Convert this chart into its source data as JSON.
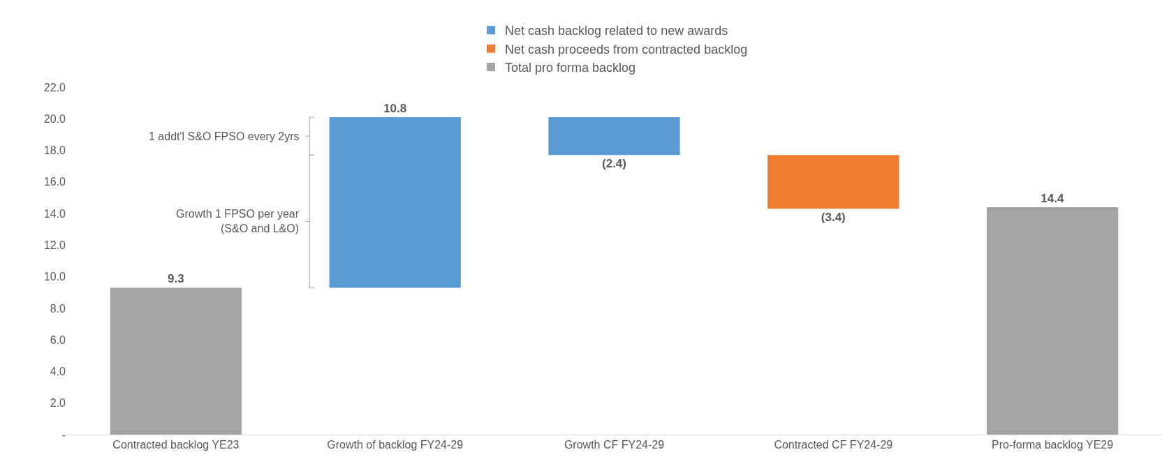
{
  "chart_data": {
    "type": "bar",
    "categories": [
      "Contracted backlog YE23",
      "Growth of backlog FY24-29",
      "Growth CF FY24-29",
      "Contracted CF FY24-29",
      "Pro-forma backlog YE29"
    ],
    "series": [
      {
        "name": "Net cash backlog related to new awards",
        "color": "#5b9bd5",
        "values": [
          null,
          10.8,
          -2.4,
          null,
          null
        ],
        "base": [
          null,
          9.3,
          20.1,
          null,
          null
        ],
        "value_labels": [
          null,
          "10.8",
          "(2.4)",
          null,
          null
        ]
      },
      {
        "name": "Net cash proceeds from contracted backlog",
        "color": "#ed7d31",
        "values": [
          null,
          null,
          null,
          -3.4,
          null
        ],
        "base": [
          null,
          null,
          null,
          17.7,
          null
        ],
        "value_labels": [
          null,
          null,
          null,
          "(3.4)",
          null
        ]
      },
      {
        "name": "Total pro forma backlog",
        "color": "#a5a5a5",
        "values": [
          9.3,
          null,
          null,
          null,
          14.4
        ],
        "value_labels": [
          "9.3",
          null,
          null,
          null,
          "14.4"
        ]
      }
    ],
    "ylim": [
      0,
      22
    ],
    "yticks": [
      {
        "value": 0,
        "label": "-"
      },
      {
        "value": 2,
        "label": "2.0"
      },
      {
        "value": 4,
        "label": "4.0"
      },
      {
        "value": 6,
        "label": "6.0"
      },
      {
        "value": 8,
        "label": "8.0"
      },
      {
        "value": 10,
        "label": "10.0"
      },
      {
        "value": 12,
        "label": "12.0"
      },
      {
        "value": 14,
        "label": "14.0"
      },
      {
        "value": 16,
        "label": "16.0"
      },
      {
        "value": 18,
        "label": "18.0"
      },
      {
        "value": 20,
        "label": "20.0"
      },
      {
        "value": 22,
        "label": "22.0"
      }
    ],
    "annotations": [
      "1 addt'l S&O FPSO every 2yrs",
      "Growth 1 FPSO per year\n(S&O and L&O)"
    ],
    "legend": "top"
  }
}
